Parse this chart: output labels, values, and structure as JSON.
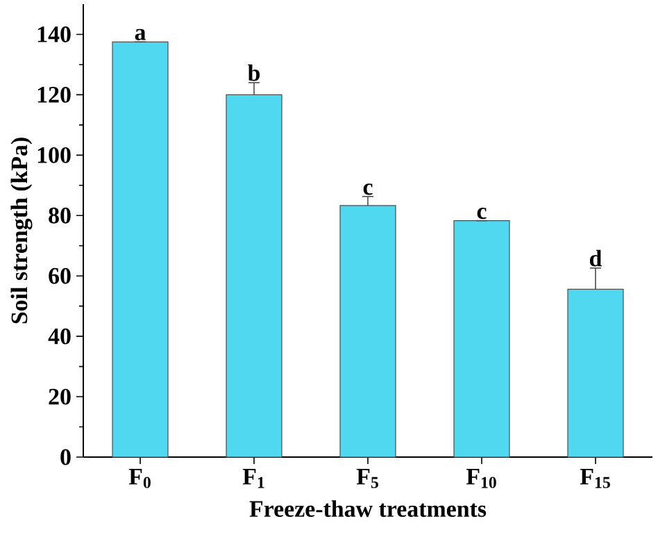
{
  "chart_data": {
    "type": "bar",
    "xlabel": "Freeze-thaw treatments",
    "ylabel": "Soil strength (kPa)",
    "categories": [
      "F$_{0}$",
      "F$_{1}$",
      "F$_{5}$",
      "F$_{10}$",
      "F$_{15}$"
    ],
    "values": [
      137.5,
      120,
      83.3,
      78.3,
      55.6
    ],
    "errors": [
      null,
      4,
      3,
      null,
      7
    ],
    "color": "#4fd8f0",
    "ylim": [
      0,
      150
    ],
    "yticks": [
      0,
      20,
      40,
      60,
      80,
      100,
      120,
      140
    ],
    "annotations": [
      {
        "text": "a",
        "x": "F$_{0}$",
        "y": 137.5
      },
      {
        "text": "b",
        "x": "F$_{1}$",
        "y": 124
      },
      {
        "text": "c",
        "x": "F$_{5}$",
        "y": 86.3
      },
      {
        "text": "c",
        "x": "F$_{10}$",
        "y": 78.3
      },
      {
        "text": "d",
        "x": "F$_{15}$",
        "y": 62.6
      }
    ]
  }
}
